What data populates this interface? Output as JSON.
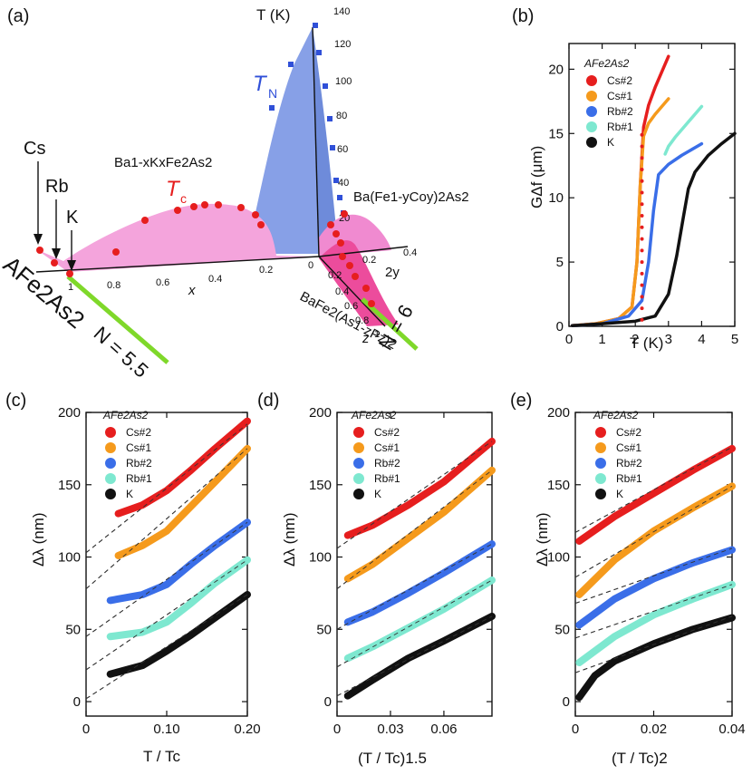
{
  "panel_a": {
    "label": "(a)",
    "t_axis_label": "T (K)",
    "t_axis_ticks": [
      "140",
      "120",
      "100",
      "80",
      "60",
      "40",
      "20"
    ],
    "tn_label": "T",
    "tn_sub": "N",
    "tc_label": "T",
    "tc_sub": "c",
    "bak_label": "Ba1-xKxFe2As2",
    "baco_label": "Ba(Fe1-yCoy)2As2",
    "bap_label": "BaFe2(As1-zPz)2",
    "x_axis_label": "x",
    "x_ticks": [
      "1",
      "0.8",
      "0.6",
      "0.4",
      "0.2",
      "0"
    ],
    "y_axis_label": "2y",
    "y_ticks": [
      "0.2",
      "0.4"
    ],
    "z_axis_label": "z",
    "z_ticks": [
      "0.2",
      "0.4",
      "0.6",
      "0.8",
      "1"
    ],
    "cs_label": "Cs",
    "rb_label": "Rb",
    "k_label": "K",
    "afeas_label": "AFe2As2",
    "n55_label": "N = 5.5",
    "n6_label": "N = 6",
    "colors": {
      "tn": "#3050d8",
      "tc": "#e02020",
      "pink": "#f080c8",
      "blue": "#7090e0",
      "green": "#7fd82a"
    }
  },
  "legend": {
    "title": "AFe2As2",
    "entries": [
      {
        "name": "Cs#2",
        "color": "#e61e1e"
      },
      {
        "name": "Cs#1",
        "color": "#f59a1c"
      },
      {
        "name": "Rb#2",
        "color": "#3a6ee8"
      },
      {
        "name": "Rb#1",
        "color": "#7ee8d0"
      },
      {
        "name": "K",
        "color": "#111111"
      }
    ]
  },
  "chart_data": [
    {
      "panel": "(b)",
      "type": "line",
      "xlabel": "T (K)",
      "ylabel": "GΔf (μm)",
      "xlim": [
        0,
        5
      ],
      "ylim": [
        0,
        22
      ],
      "xticks": [
        0,
        1,
        2,
        3,
        4,
        5
      ],
      "yticks": [
        0,
        5,
        10,
        15,
        20
      ],
      "series": [
        {
          "name": "Cs#2",
          "color": "#e61e1e",
          "x": [
            0.1,
            0.8,
            1.5,
            1.9,
            2.05,
            2.15,
            2.25,
            2.4,
            2.6,
            2.8,
            3.0
          ],
          "y": [
            0.05,
            0.2,
            0.6,
            1.5,
            5,
            11,
            15.5,
            17.2,
            18.6,
            19.8,
            21
          ]
        },
        {
          "name": "Cs#1",
          "color": "#f59a1c",
          "x": [
            0.1,
            0.8,
            1.5,
            1.9,
            2.05,
            2.15,
            2.25,
            2.4,
            2.6,
            2.8,
            3.0
          ],
          "y": [
            0.05,
            0.2,
            0.6,
            1.5,
            5,
            11,
            14.8,
            15.8,
            16.5,
            17.1,
            17.7
          ]
        },
        {
          "name": "Rb#2",
          "color": "#3a6ee8",
          "x": [
            0.1,
            1.0,
            1.8,
            2.2,
            2.4,
            2.55,
            2.7,
            3.0,
            3.4,
            3.8,
            4.0
          ],
          "y": [
            0.05,
            0.2,
            0.8,
            2,
            5,
            9,
            11.8,
            12.6,
            13.3,
            13.9,
            14.2
          ]
        },
        {
          "name": "Rb#1",
          "color": "#7ee8d0",
          "x": [
            2.9,
            3.0,
            3.2,
            3.5,
            3.8,
            4.0
          ],
          "y": [
            13.4,
            14.0,
            14.7,
            15.6,
            16.5,
            17.1
          ]
        },
        {
          "name": "K",
          "color": "#111111",
          "x": [
            0.1,
            1.0,
            2.0,
            2.6,
            3.0,
            3.25,
            3.45,
            3.6,
            3.8,
            4.2,
            4.6,
            5.0
          ],
          "y": [
            0.05,
            0.2,
            0.4,
            0.8,
            2.5,
            5.5,
            8.5,
            10.7,
            12,
            13.3,
            14.2,
            15
          ]
        }
      ],
      "tc_markers": {
        "color": "#e61e1e",
        "x": 2.2,
        "y_from": 0.5,
        "y_to": 15.5
      }
    },
    {
      "panel": "(c)",
      "type": "line",
      "xlabel": "T / Tc",
      "ylabel": "Δλ (nm)",
      "xlim": [
        0,
        0.2
      ],
      "ylim": [
        -10,
        200
      ],
      "xtick_labels": [
        "0",
        "0.10",
        "0.20"
      ],
      "xticks": [
        0,
        0.1,
        0.2
      ],
      "yticks": [
        0,
        50,
        100,
        150,
        200
      ],
      "series": [
        {
          "name": "Cs#2",
          "color": "#e61e1e",
          "x": [
            0.04,
            0.07,
            0.1,
            0.13,
            0.16,
            0.2
          ],
          "y": [
            130,
            136,
            146,
            160,
            175,
            194
          ]
        },
        {
          "name": "Cs#1",
          "color": "#f59a1c",
          "x": [
            0.04,
            0.07,
            0.1,
            0.13,
            0.16,
            0.2
          ],
          "y": [
            101,
            108,
            118,
            135,
            152,
            175
          ]
        },
        {
          "name": "Rb#2",
          "color": "#3a6ee8",
          "x": [
            0.03,
            0.07,
            0.1,
            0.13,
            0.16,
            0.2
          ],
          "y": [
            70,
            74,
            81,
            95,
            108,
            124
          ]
        },
        {
          "name": "Rb#1",
          "color": "#7ee8d0",
          "x": [
            0.03,
            0.07,
            0.1,
            0.13,
            0.16,
            0.2
          ],
          "y": [
            45,
            48,
            55,
            68,
            82,
            98
          ]
        },
        {
          "name": "K",
          "color": "#111111",
          "x": [
            0.03,
            0.07,
            0.1,
            0.13,
            0.16,
            0.2
          ],
          "y": [
            19,
            25,
            35,
            46,
            58,
            74
          ]
        }
      ],
      "fit_lines": [
        {
          "x": [
            0,
            0.2
          ],
          "y": [
            103,
            192
          ]
        },
        {
          "x": [
            0,
            0.2
          ],
          "y": [
            78,
            175
          ]
        },
        {
          "x": [
            0,
            0.2
          ],
          "y": [
            45,
            124
          ]
        },
        {
          "x": [
            0,
            0.2
          ],
          "y": [
            22,
            98
          ]
        },
        {
          "x": [
            0,
            0.2
          ],
          "y": [
            2,
            74
          ]
        }
      ]
    },
    {
      "panel": "(d)",
      "type": "line",
      "xlabel": "(T / Tc)1.5",
      "ylabel": "Δλ (nm)",
      "xlim": [
        0,
        0.087
      ],
      "ylim": [
        -10,
        200
      ],
      "xtick_labels": [
        "0",
        "0.03",
        "0.06"
      ],
      "xticks": [
        0,
        0.03,
        0.06
      ],
      "yticks": [
        0,
        50,
        100,
        150,
        200
      ],
      "series": [
        {
          "name": "Cs#2",
          "color": "#e61e1e",
          "x": [
            0.006,
            0.02,
            0.04,
            0.06,
            0.087
          ],
          "y": [
            115,
            122,
            136,
            152,
            180
          ]
        },
        {
          "name": "Cs#1",
          "color": "#f59a1c",
          "x": [
            0.006,
            0.02,
            0.04,
            0.06,
            0.087
          ],
          "y": [
            85,
            95,
            113,
            131,
            160
          ]
        },
        {
          "name": "Rb#2",
          "color": "#3a6ee8",
          "x": [
            0.006,
            0.02,
            0.04,
            0.06,
            0.087
          ],
          "y": [
            55,
            62,
            75,
            89,
            109
          ]
        },
        {
          "name": "Rb#1",
          "color": "#7ee8d0",
          "x": [
            0.006,
            0.02,
            0.04,
            0.06,
            0.087
          ],
          "y": [
            30,
            38,
            51,
            64,
            84
          ]
        },
        {
          "name": "K",
          "color": "#111111",
          "x": [
            0.006,
            0.02,
            0.04,
            0.06,
            0.087
          ],
          "y": [
            4,
            15,
            30,
            42,
            59
          ]
        }
      ],
      "fit_lines": [
        {
          "x": [
            0,
            0.087
          ],
          "y": [
            106,
            180
          ]
        },
        {
          "x": [
            0,
            0.087
          ],
          "y": [
            78,
            160
          ]
        },
        {
          "x": [
            0,
            0.087
          ],
          "y": [
            50,
            109
          ]
        },
        {
          "x": [
            0,
            0.087
          ],
          "y": [
            24,
            84
          ]
        },
        {
          "x": [
            0,
            0.087
          ],
          "y": [
            4,
            59
          ]
        }
      ]
    },
    {
      "panel": "(e)",
      "type": "line",
      "xlabel": "(T / Tc)2",
      "ylabel": "Δλ (nm)",
      "xlim": [
        0,
        0.04
      ],
      "ylim": [
        -10,
        200
      ],
      "xtick_labels": [
        "0",
        "0.02",
        "0.04"
      ],
      "xticks": [
        0,
        0.02,
        0.04
      ],
      "yticks": [
        0,
        50,
        100,
        150,
        200
      ],
      "series": [
        {
          "name": "Cs#2",
          "color": "#e61e1e",
          "x": [
            0.001,
            0.01,
            0.02,
            0.03,
            0.04
          ],
          "y": [
            111,
            128,
            144,
            160,
            175
          ]
        },
        {
          "name": "Cs#1",
          "color": "#f59a1c",
          "x": [
            0.001,
            0.01,
            0.02,
            0.03,
            0.04
          ],
          "y": [
            74,
            98,
            118,
            134,
            149
          ]
        },
        {
          "name": "Rb#2",
          "color": "#3a6ee8",
          "x": [
            0.001,
            0.01,
            0.02,
            0.03,
            0.04
          ],
          "y": [
            53,
            71,
            85,
            96,
            105
          ]
        },
        {
          "name": "Rb#1",
          "color": "#7ee8d0",
          "x": [
            0.001,
            0.01,
            0.02,
            0.03,
            0.04
          ],
          "y": [
            27,
            45,
            60,
            71,
            81
          ]
        },
        {
          "name": "K",
          "color": "#111111",
          "x": [
            0.001,
            0.005,
            0.01,
            0.02,
            0.03,
            0.04
          ],
          "y": [
            3,
            18,
            28,
            40,
            50,
            58
          ]
        }
      ],
      "fit_lines": [
        {
          "x": [
            0,
            0.04
          ],
          "y": [
            117,
            176
          ]
        },
        {
          "x": [
            0,
            0.04
          ],
          "y": [
            86,
            149
          ]
        },
        {
          "x": [
            0,
            0.04
          ],
          "y": [
            68,
            106
          ]
        },
        {
          "x": [
            0,
            0.04
          ],
          "y": [
            44,
            81
          ]
        },
        {
          "x": [
            0,
            0.04
          ],
          "y": [
            20,
            59
          ]
        }
      ]
    }
  ]
}
